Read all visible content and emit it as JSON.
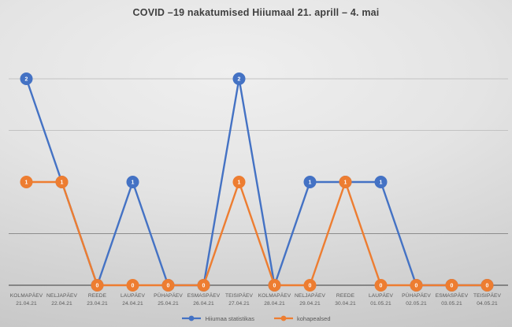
{
  "chart_data": {
    "type": "line",
    "title": "COVID –19 nakatumised Hiiumaal 21. aprill – 4. mai",
    "categories": [
      {
        "day": "KOLMAPÄEV",
        "date": "21.04.21"
      },
      {
        "day": "NELJAPÄEV",
        "date": "22.04.21"
      },
      {
        "day": "REEDE",
        "date": "23.04.21"
      },
      {
        "day": "LAUPÄEV",
        "date": "24.04.21"
      },
      {
        "day": "PÜHAPÄEV",
        "date": "25.04.21"
      },
      {
        "day": "ESMASPÄEV",
        "date": "26.04.21"
      },
      {
        "day": "TEISIPÄEV",
        "date": "27.04.21"
      },
      {
        "day": "KOLMAPÄEV",
        "date": "28.04.21"
      },
      {
        "day": "NELJAPÄEV",
        "date": "29.04.21"
      },
      {
        "day": "REEDE",
        "date": "30.04.21"
      },
      {
        "day": "LAUPÄEV",
        "date": "01.05.21"
      },
      {
        "day": "PÜHAPÄEV",
        "date": "02.05.21"
      },
      {
        "day": "ESMASPÄEV",
        "date": "03.05.21"
      },
      {
        "day": "TEISIPÄEV",
        "date": "04.05.21"
      }
    ],
    "series": [
      {
        "name": "Hiiumaa statistikas",
        "color": "#4472C4",
        "values": [
          2,
          1,
          0,
          1,
          0,
          0,
          2,
          0,
          1,
          1,
          1,
          0,
          0,
          0
        ]
      },
      {
        "name": "kohapealsed",
        "color": "#ED7D31",
        "values": [
          1,
          1,
          0,
          0,
          0,
          0,
          1,
          0,
          0,
          1,
          0,
          0,
          0,
          0
        ]
      }
    ],
    "ylim": [
      0,
      2
    ],
    "gridlines": [
      {
        "value": 2.0,
        "emphasis": "light"
      },
      {
        "value": 1.5,
        "emphasis": "light"
      },
      {
        "value": 0.5,
        "emphasis": "dark"
      }
    ],
    "legend_position": "bottom",
    "data_labels": "inside-markers",
    "marker_label_color": "#ffffff"
  },
  "colors": {
    "axis": "#595959",
    "gridline_light": "#c3c3c3",
    "gridline_dark": "#8d8d8d",
    "title_text": "#3f3f3f",
    "axis_label_text": "#595959"
  }
}
